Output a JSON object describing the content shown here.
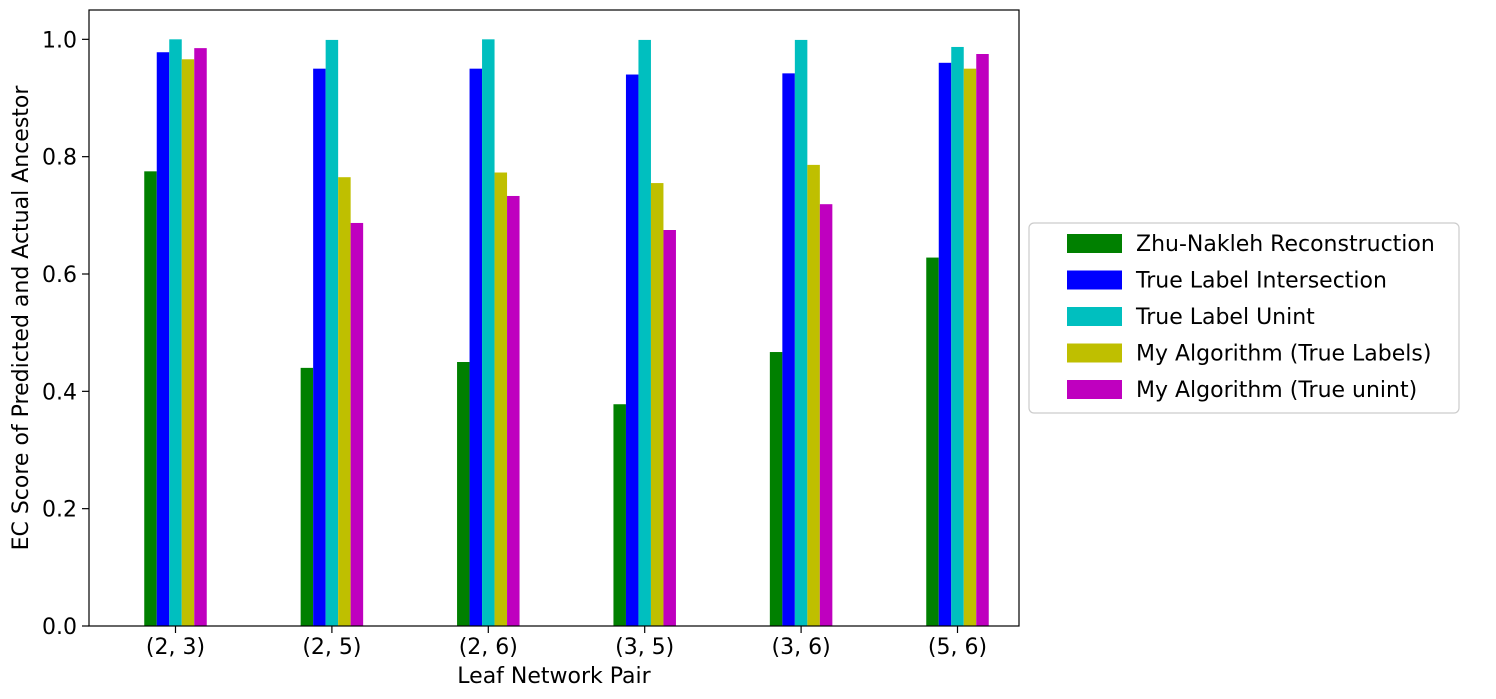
{
  "chart_data": {
    "type": "bar",
    "categories": [
      "(2, 3)",
      "(2, 5)",
      "(2, 6)",
      "(3, 5)",
      "(3, 6)",
      "(5, 6)"
    ],
    "series": [
      {
        "name": "Zhu-Nakleh Reconstruction",
        "color": "#008000",
        "values": [
          0.775,
          0.44,
          0.45,
          0.378,
          0.467,
          0.628
        ]
      },
      {
        "name": "True Label Intersection",
        "color": "#0000ff",
        "values": [
          0.978,
          0.95,
          0.95,
          0.94,
          0.942,
          0.96
        ]
      },
      {
        "name": "True Label Unint",
        "color": "#00bfbf",
        "values": [
          1.0,
          0.999,
          1.0,
          0.999,
          0.999,
          0.987
        ]
      },
      {
        "name": "My Algorithm (True Labels)",
        "color": "#bfbf00",
        "values": [
          0.966,
          0.765,
          0.773,
          0.755,
          0.786,
          0.95
        ]
      },
      {
        "name": "My Algorithm (True unint)",
        "color": "#bf00bf",
        "values": [
          0.985,
          0.687,
          0.733,
          0.675,
          0.719,
          0.975
        ]
      }
    ],
    "xlabel": "Leaf Network Pair",
    "ylabel": "EC Score of Predicted and Actual Ancestor",
    "ylim": [
      0,
      1.05
    ],
    "yticks": [
      "0.0",
      "0.2",
      "0.4",
      "0.6",
      "0.8",
      "1.0"
    ],
    "grid": false,
    "legend_position": "right-outside"
  }
}
